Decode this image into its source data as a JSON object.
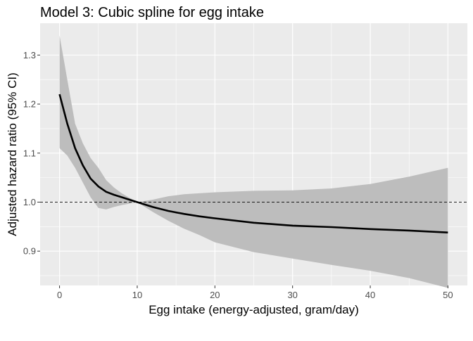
{
  "chart_data": {
    "type": "line",
    "title": "Model 3: Cubic spline for egg intake",
    "xlabel": "Egg intake (energy-adjusted, gram/day)",
    "ylabel": "Adjusted hazard ratio (95% CI)",
    "xlim": [
      -2.5,
      52.5
    ],
    "ylim": [
      0.83,
      1.365
    ],
    "x_ticks": [
      0,
      10,
      20,
      30,
      40,
      50
    ],
    "x_tick_labels": [
      "0",
      "10",
      "20",
      "30",
      "40",
      "50"
    ],
    "y_ticks": [
      0.9,
      1.0,
      1.1,
      1.2,
      1.3
    ],
    "y_tick_labels": [
      "0.9",
      "1.0",
      "1.1",
      "1.2",
      "1.3"
    ],
    "grid": true,
    "background": "#ebebeb",
    "grid_color": "#ffffff",
    "line_color": "#000000",
    "ribbon_color": "#bdbdbd",
    "reference_line": {
      "y": 1.0,
      "style": "dashed",
      "color": "#000000"
    },
    "series": [
      {
        "x": [
          0,
          1,
          2,
          3,
          4,
          5,
          6,
          7,
          8,
          9,
          10,
          12,
          14,
          16,
          18,
          20,
          25,
          30,
          35,
          40,
          45,
          50
        ],
        "y": [
          1.22,
          1.16,
          1.11,
          1.075,
          1.048,
          1.032,
          1.021,
          1.015,
          1.01,
          1.005,
          1.0,
          0.99,
          0.982,
          0.976,
          0.971,
          0.967,
          0.958,
          0.952,
          0.949,
          0.945,
          0.942,
          0.938
        ],
        "lower": [
          1.11,
          1.095,
          1.07,
          1.04,
          1.01,
          0.988,
          0.985,
          0.99,
          0.994,
          0.997,
          1.0,
          0.98,
          0.962,
          0.946,
          0.933,
          0.918,
          0.898,
          0.885,
          0.872,
          0.86,
          0.845,
          0.825
        ],
        "upper": [
          1.34,
          1.25,
          1.16,
          1.12,
          1.09,
          1.07,
          1.045,
          1.03,
          1.018,
          1.009,
          1.0,
          1.005,
          1.012,
          1.016,
          1.018,
          1.02,
          1.023,
          1.024,
          1.028,
          1.037,
          1.052,
          1.07
        ]
      }
    ]
  }
}
